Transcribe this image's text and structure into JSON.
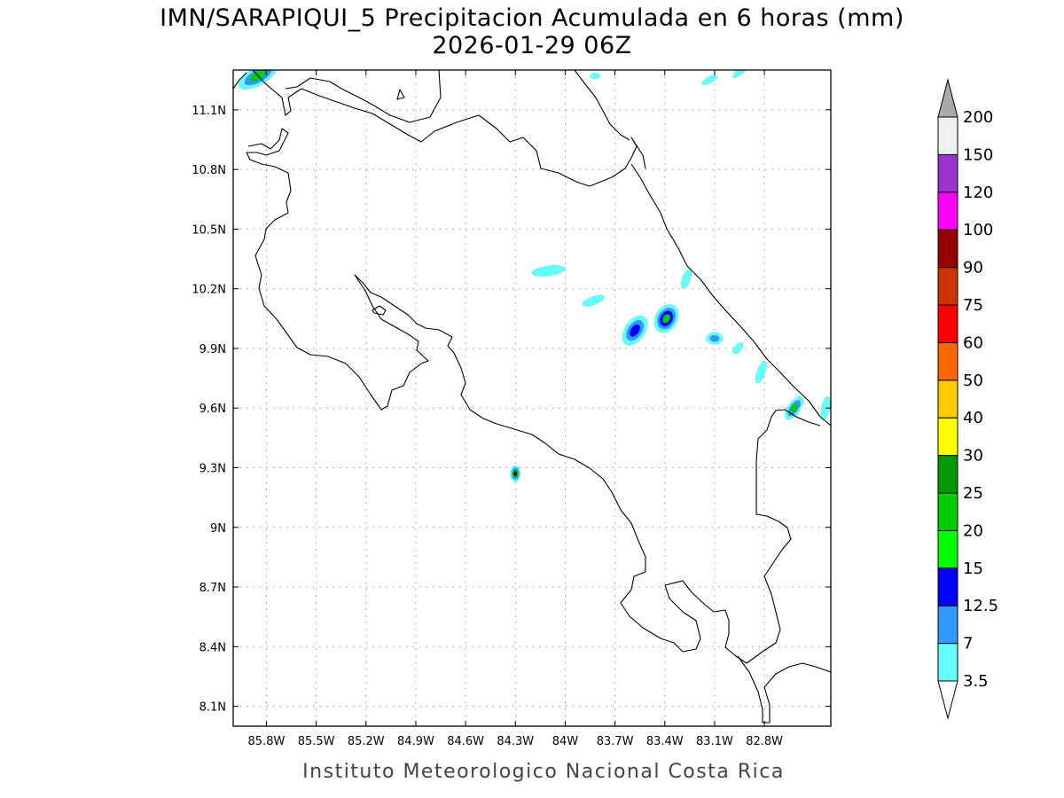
{
  "header": {
    "title": "IMN/SARAPIQUI_5 Precipitacion Acumulada en 6 horas (mm)",
    "datetime": "2026-01-29 06Z"
  },
  "footer": {
    "credit": "Instituto Meteorologico Nacional Costa Rica"
  },
  "map": {
    "lon_range": [
      -86.0,
      -82.4
    ],
    "lat_range": [
      8.0,
      11.3
    ],
    "x_ticks": [
      {
        "lon": -85.8,
        "label": "85.8W"
      },
      {
        "lon": -85.5,
        "label": "85.5W"
      },
      {
        "lon": -85.2,
        "label": "85.2W"
      },
      {
        "lon": -84.9,
        "label": "84.9W"
      },
      {
        "lon": -84.6,
        "label": "84.6W"
      },
      {
        "lon": -84.3,
        "label": "84.3W"
      },
      {
        "lon": -84.0,
        "label": "84W"
      },
      {
        "lon": -83.7,
        "label": "83.7W"
      },
      {
        "lon": -83.4,
        "label": "83.4W"
      },
      {
        "lon": -83.1,
        "label": "83.1W"
      },
      {
        "lon": -82.8,
        "label": "82.8W"
      }
    ],
    "y_ticks": [
      {
        "lat": 11.1,
        "label": "11.1N"
      },
      {
        "lat": 10.8,
        "label": "10.8N"
      },
      {
        "lat": 10.5,
        "label": "10.5N"
      },
      {
        "lat": 10.2,
        "label": "10.2N"
      },
      {
        "lat": 9.9,
        "label": "9.9N"
      },
      {
        "lat": 9.6,
        "label": "9.6N"
      },
      {
        "lat": 9.3,
        "label": "9.3N"
      },
      {
        "lat": 9.0,
        "label": "9N"
      },
      {
        "lat": 8.7,
        "label": "8.7N"
      },
      {
        "lat": 8.4,
        "label": "8.4N"
      },
      {
        "lat": 8.1,
        "label": "8.1N"
      }
    ],
    "grid": true
  },
  "colorbar": {
    "thresholds": [
      "3.5",
      "7",
      "12.5",
      "15",
      "20",
      "25",
      "30",
      "40",
      "50",
      "60",
      "75",
      "90",
      "100",
      "120",
      "150",
      "200"
    ],
    "colors": [
      "#66ffff",
      "#3399ff",
      "#0000ff",
      "#00ff00",
      "#00cc00",
      "#009900",
      "#ffff00",
      "#ffcc00",
      "#ff6600",
      "#ff0000",
      "#cc3300",
      "#990000",
      "#ff00ff",
      "#9933cc",
      "#f0f0f0"
    ],
    "below_color": "#ffffff",
    "above_color": "#aaaaaa"
  },
  "precip_cells": [
    {
      "lon": -85.85,
      "lat": 11.27,
      "rx": 0.13,
      "ry": 0.045,
      "rot": -30,
      "levels": [
        "#66ffff",
        "#3399ff",
        "#00cc00"
      ]
    },
    {
      "lon": -84.1,
      "lat": 10.29,
      "rx": 0.1,
      "ry": 0.025,
      "rot": -8,
      "levels": [
        "#66ffff"
      ]
    },
    {
      "lon": -83.83,
      "lat": 10.14,
      "rx": 0.07,
      "ry": 0.02,
      "rot": -20,
      "levels": [
        "#66ffff"
      ]
    },
    {
      "lon": -83.58,
      "lat": 9.99,
      "rx": 0.1,
      "ry": 0.05,
      "rot": -55,
      "levels": [
        "#66ffff",
        "#3399ff",
        "#0000ff"
      ]
    },
    {
      "lon": -83.39,
      "lat": 10.05,
      "rx": 0.09,
      "ry": 0.055,
      "rot": -60,
      "levels": [
        "#66ffff",
        "#3399ff",
        "#0000ff",
        "#00cc00"
      ]
    },
    {
      "lon": -83.27,
      "lat": 10.25,
      "rx": 0.06,
      "ry": 0.02,
      "rot": -70,
      "levels": [
        "#66ffff"
      ]
    },
    {
      "lon": -83.1,
      "lat": 9.95,
      "rx": 0.05,
      "ry": 0.03,
      "rot": 0,
      "levels": [
        "#66ffff",
        "#3399ff"
      ]
    },
    {
      "lon": -82.96,
      "lat": 9.9,
      "rx": 0.04,
      "ry": 0.018,
      "rot": -50,
      "levels": [
        "#66ffff"
      ]
    },
    {
      "lon": -82.82,
      "lat": 9.78,
      "rx": 0.07,
      "ry": 0.02,
      "rot": -70,
      "levels": [
        "#66ffff"
      ]
    },
    {
      "lon": -82.62,
      "lat": 9.6,
      "rx": 0.08,
      "ry": 0.03,
      "rot": -55,
      "levels": [
        "#66ffff",
        "#3399ff",
        "#00cc00"
      ]
    },
    {
      "lon": -82.43,
      "lat": 9.6,
      "rx": 0.07,
      "ry": 0.02,
      "rot": -80,
      "levels": [
        "#66ffff"
      ]
    },
    {
      "lon": -84.3,
      "lat": 9.27,
      "rx": 0.03,
      "ry": 0.04,
      "rot": 0,
      "levels": [
        "#66ffff",
        "#3399ff",
        "#00cc00",
        "#000000"
      ]
    },
    {
      "lon": -82.95,
      "lat": 11.29,
      "rx": 0.05,
      "ry": 0.015,
      "rot": -40,
      "levels": [
        "#66ffff"
      ]
    },
    {
      "lon": -83.13,
      "lat": 11.25,
      "rx": 0.05,
      "ry": 0.015,
      "rot": -30,
      "levels": [
        "#66ffff"
      ]
    },
    {
      "lon": -83.82,
      "lat": 11.27,
      "rx": 0.03,
      "ry": 0.015,
      "rot": 0,
      "levels": [
        "#66ffff"
      ]
    }
  ]
}
